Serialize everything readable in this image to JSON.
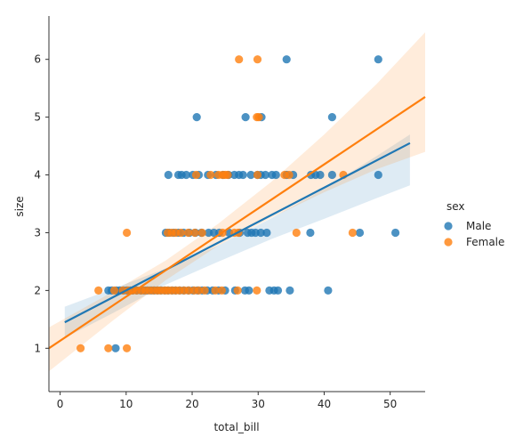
{
  "chart_data": {
    "type": "scatter",
    "title": "",
    "xlabel": "total_bill",
    "ylabel": "size",
    "xlim": [
      -1.7,
      55.3
    ],
    "ylim": [
      0.25,
      6.75
    ],
    "x_ticks": [
      0,
      10,
      20,
      30,
      40,
      50
    ],
    "y_ticks": [
      1,
      2,
      3,
      4,
      5,
      6
    ],
    "grid": false,
    "legend": {
      "title": "sex",
      "placement": "right"
    },
    "series": [
      {
        "name": "Male",
        "color": "#1f77b4",
        "x": [
          8.4,
          7.3,
          7.8,
          8.5,
          9.0,
          9.6,
          10.1,
          10.6,
          11.0,
          11.6,
          12.2,
          12.7,
          13.2,
          13.8,
          14.3,
          14.8,
          15.3,
          15.9,
          16.4,
          17.0,
          17.5,
          18.1,
          18.7,
          19.4,
          20.1,
          20.8,
          21.5,
          22.3,
          23.1,
          24.0,
          25.0,
          26.5,
          28.0,
          28.6,
          31.7,
          32.4,
          33.0,
          34.8,
          40.6,
          16.0,
          16.5,
          17.2,
          17.9,
          18.7,
          19.6,
          20.5,
          21.4,
          22.5,
          23.3,
          24.1,
          25.6,
          27.2,
          28.4,
          29.0,
          29.6,
          30.4,
          31.3,
          37.9,
          45.4,
          50.8,
          16.4,
          17.9,
          18.4,
          19.1,
          20.1,
          21.0,
          22.4,
          23.6,
          24.7,
          25.5,
          26.4,
          27.1,
          27.7,
          28.9,
          29.9,
          30.4,
          31.1,
          32.1,
          32.7,
          34.3,
          35.3,
          38.0,
          38.7,
          39.4,
          41.2,
          48.2,
          20.7,
          28.1,
          30.5,
          41.2,
          34.3,
          48.2
        ],
        "y": [
          1,
          2,
          2,
          2,
          2,
          2,
          2,
          2,
          2,
          2,
          2,
          2,
          2,
          2,
          2,
          2,
          2,
          2,
          2,
          2,
          2,
          2,
          2,
          2,
          2,
          2,
          2,
          2,
          2,
          2,
          2,
          2,
          2,
          2,
          2,
          2,
          2,
          2,
          2,
          3,
          3,
          3,
          3,
          3,
          3,
          3,
          3,
          3,
          3,
          3,
          3,
          3,
          3,
          3,
          3,
          3,
          3,
          3,
          3,
          3,
          4,
          4,
          4,
          4,
          4,
          4,
          4,
          4,
          4,
          4,
          4,
          4,
          4,
          4,
          4,
          4,
          4,
          4,
          4,
          4,
          4,
          4,
          4,
          4,
          4,
          4,
          5,
          5,
          5,
          5,
          6,
          6
        ],
        "fit": {
          "x": [
            0.7,
            53.0
          ],
          "y": [
            1.45,
            4.55
          ]
        },
        "ci_x": [
          0.7,
          8,
          16,
          24,
          32,
          40,
          48,
          53.0
        ],
        "ci_upper": [
          1.72,
          2.03,
          2.38,
          2.78,
          3.25,
          3.76,
          4.33,
          4.7
        ],
        "ci_lower": [
          1.18,
          1.61,
          2.1,
          2.5,
          2.89,
          3.24,
          3.6,
          3.82
        ]
      },
      {
        "name": "Female",
        "color": "#ff7f0e",
        "x": [
          3.1,
          7.3,
          10.1,
          5.8,
          8.2,
          9.5,
          10.3,
          11.0,
          11.6,
          12.3,
          12.9,
          13.5,
          14.1,
          14.7,
          15.2,
          15.8,
          16.3,
          16.9,
          17.5,
          18.1,
          18.8,
          19.5,
          20.3,
          21.0,
          21.9,
          23.5,
          24.5,
          26.9,
          29.8,
          10.1,
          16.3,
          16.9,
          17.5,
          18.3,
          19.4,
          20.4,
          21.5,
          24.6,
          26.4,
          27.0,
          35.8,
          44.3,
          20.6,
          22.8,
          24.0,
          24.6,
          25.0,
          25.4,
          29.9,
          34.0,
          34.7,
          42.9,
          29.8,
          30.1,
          27.1,
          29.9
        ],
        "y": [
          1,
          1,
          1,
          2,
          2,
          2,
          2,
          2,
          2,
          2,
          2,
          2,
          2,
          2,
          2,
          2,
          2,
          2,
          2,
          2,
          2,
          2,
          2,
          2,
          2,
          2,
          2,
          2,
          2,
          3,
          3,
          3,
          3,
          3,
          3,
          3,
          3,
          3,
          3,
          3,
          3,
          3,
          4,
          4,
          4,
          4,
          4,
          4,
          4,
          4,
          4,
          4,
          5,
          5,
          6,
          6
        ],
        "fit": {
          "x": [
            -1.7,
            55.3
          ],
          "y": [
            1.0,
            5.35
          ]
        },
        "ci_x": [
          -1.7,
          8,
          16,
          24,
          32,
          40,
          48,
          55.3
        ],
        "ci_upper": [
          1.36,
          1.98,
          2.52,
          3.16,
          3.88,
          4.7,
          5.58,
          6.47
        ],
        "ci_lower": [
          0.6,
          1.48,
          2.18,
          2.78,
          3.26,
          3.7,
          4.1,
          4.4
        ]
      }
    ]
  }
}
